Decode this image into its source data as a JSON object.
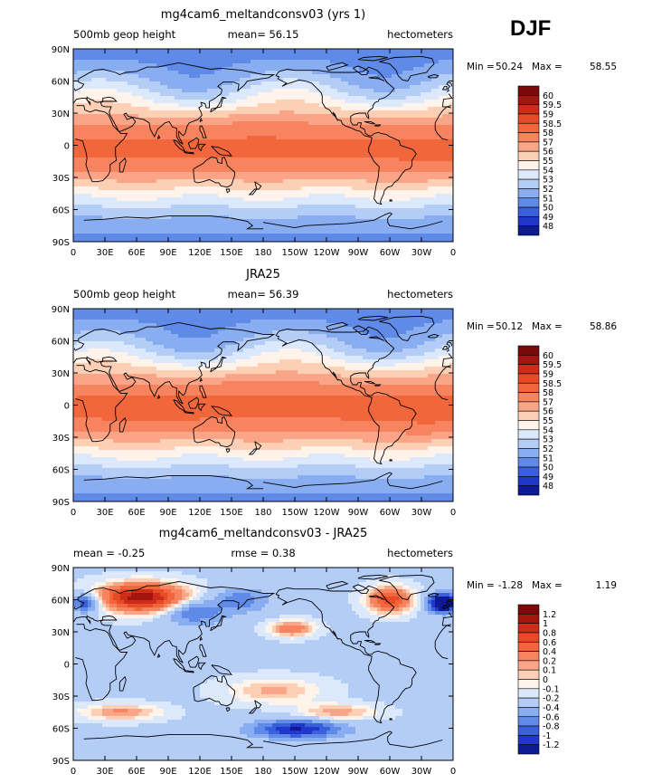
{
  "season": "DJF",
  "chart_data": [
    {
      "type": "heatmap",
      "title": "mg4cam6_meltandconsv03 (yrs 1)",
      "left_label": "500mb geop height",
      "center_label": "mean=  56.15",
      "right_label": "hectometers",
      "stats": {
        "min_label": "Min =",
        "min": "50.24",
        "max_label": "Max =",
        "max": "58.55"
      },
      "x_ticks": [
        "0",
        "30E",
        "60E",
        "90E",
        "120E",
        "150E",
        "180",
        "150W",
        "120W",
        "90W",
        "60W",
        "30W",
        "0"
      ],
      "y_ticks": [
        "90N",
        "60N",
        "30N",
        "0",
        "30S",
        "60S",
        "90S"
      ],
      "colorbar": {
        "levels": [
          "60",
          "59.5",
          "59",
          "58.5",
          "58",
          "57",
          "56",
          "55",
          "54",
          "53",
          "52",
          "51",
          "50",
          "49",
          "48"
        ],
        "colors": [
          "#7a0a0a",
          "#a31610",
          "#cc2c18",
          "#e64a26",
          "#f2663b",
          "#f7845e",
          "#fba588",
          "#fdd0b6",
          "#fff3ea",
          "#dce8fb",
          "#b3cdf7",
          "#88adf1",
          "#5f8ae8",
          "#3a5fdb",
          "#2037c9",
          "#0e1a95"
        ]
      },
      "contour_levels": [
        48,
        49,
        50,
        51,
        52,
        53,
        54,
        55,
        56,
        57,
        58,
        58.5,
        59,
        59.5,
        60
      ]
    },
    {
      "type": "heatmap",
      "title": "JRA25",
      "left_label": "500mb geop height",
      "center_label": "mean=  56.39",
      "right_label": "hectometers",
      "stats": {
        "min_label": "Min =",
        "min": "50.12",
        "max_label": "Max =",
        "max": "58.86"
      },
      "x_ticks": [
        "0",
        "30E",
        "60E",
        "90E",
        "120E",
        "150E",
        "180",
        "150W",
        "120W",
        "90W",
        "60W",
        "30W",
        "0"
      ],
      "y_ticks": [
        "90N",
        "60N",
        "30N",
        "0",
        "30S",
        "60S",
        "90S"
      ],
      "colorbar": {
        "levels": [
          "60",
          "59.5",
          "59",
          "58.5",
          "58",
          "57",
          "56",
          "55",
          "54",
          "53",
          "52",
          "51",
          "50",
          "49",
          "48"
        ],
        "colors": [
          "#7a0a0a",
          "#a31610",
          "#cc2c18",
          "#e64a26",
          "#f2663b",
          "#f7845e",
          "#fba588",
          "#fdd0b6",
          "#fff3ea",
          "#dce8fb",
          "#b3cdf7",
          "#88adf1",
          "#5f8ae8",
          "#3a5fdb",
          "#2037c9",
          "#0e1a95"
        ]
      },
      "contour_levels": [
        48,
        49,
        50,
        51,
        52,
        53,
        54,
        55,
        56,
        57,
        58,
        58.5,
        59,
        59.5,
        60
      ]
    },
    {
      "type": "heatmap",
      "title": "mg4cam6_meltandconsv03 - JRA25",
      "left_label": "mean =   -0.25",
      "center_label": "rmse =    0.38",
      "right_label": "hectometers",
      "stats": {
        "min_label": "Min =",
        "min": "-1.28",
        "max_label": "Max =",
        "max": "1.19"
      },
      "x_ticks": [
        "0",
        "30E",
        "60E",
        "90E",
        "120E",
        "150E",
        "180",
        "150W",
        "120W",
        "90W",
        "60W",
        "30W",
        "0"
      ],
      "y_ticks": [
        "90N",
        "60N",
        "30N",
        "0",
        "30S",
        "60S",
        "90S"
      ],
      "colorbar": {
        "levels": [
          "1.2",
          "1",
          "0.8",
          "0.6",
          "0.4",
          "0.2",
          "0.1",
          "0",
          "-0.1",
          "-0.2",
          "-0.4",
          "-0.6",
          "-0.8",
          "-1",
          "-1.2"
        ],
        "colors": [
          "#7a0a0a",
          "#a31610",
          "#cc2c18",
          "#e64a26",
          "#f2663b",
          "#f7845e",
          "#fba588",
          "#fdd0b6",
          "#fff3ea",
          "#dce8fb",
          "#b3cdf7",
          "#88adf1",
          "#5f8ae8",
          "#3a5fdb",
          "#2037c9",
          "#0e1a95"
        ]
      },
      "contour_levels": [
        -1.2,
        -1,
        -0.8,
        -0.6,
        -0.4,
        -0.2,
        -0.1,
        0,
        0.1,
        0.2,
        0.4,
        0.6,
        0.8,
        1,
        1.2
      ]
    }
  ]
}
